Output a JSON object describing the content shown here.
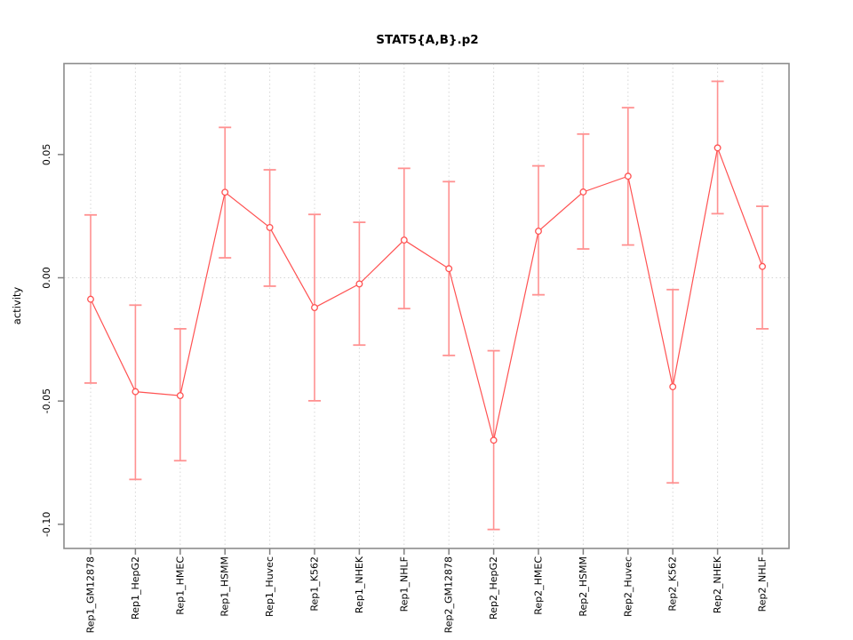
{
  "chart_data": {
    "type": "line",
    "title": "STAT5{A,B}.p2",
    "ylabel": "activity",
    "xlabel": "",
    "legend": "none",
    "point_marker": "open-circle",
    "error_bars": true,
    "categories": [
      "Rep1_GM12878",
      "Rep1_HepG2",
      "Rep1_HMEC",
      "Rep1_HSMM",
      "Rep1_Huvec",
      "Rep1_K562",
      "Rep1_NHEK",
      "Rep1_NHLF",
      "Rep2_GM12878",
      "Rep2_HepG2",
      "Rep2_HMEC",
      "Rep2_HSMM",
      "Rep2_Huvec",
      "Rep2_K562",
      "Rep2_NHEK",
      "Rep2_NHLF"
    ],
    "series": [
      {
        "name": "activity",
        "values": [
          -0.0087,
          -0.0462,
          -0.0478,
          0.0347,
          0.0204,
          -0.0121,
          -0.0025,
          0.0153,
          0.0037,
          -0.0659,
          0.0189,
          0.0348,
          0.0412,
          -0.0442,
          0.0527,
          0.0046
        ],
        "ci_lower": [
          -0.0427,
          -0.0818,
          -0.0742,
          0.0081,
          -0.0034,
          -0.0499,
          -0.0273,
          -0.0125,
          -0.0315,
          -0.1021,
          -0.0069,
          0.0117,
          0.0133,
          -0.0832,
          0.026,
          -0.0207
        ],
        "ci_upper": [
          0.0255,
          -0.0111,
          -0.0207,
          0.061,
          0.0438,
          0.0257,
          0.0225,
          0.0444,
          0.039,
          -0.0296,
          0.0454,
          0.0583,
          0.069,
          -0.0048,
          0.0797,
          0.029
        ]
      }
    ],
    "yticks": [
      {
        "value": 0.05,
        "label": "0.05"
      },
      {
        "value": 0.0,
        "label": "0.00"
      },
      {
        "value": -0.05,
        "label": "-0.05"
      },
      {
        "value": -0.1,
        "label": "-0.10"
      }
    ],
    "ylim": [
      -0.1098,
      0.0869
    ],
    "grid": {
      "vertical_per_category": true,
      "horizontal_at_zero": true,
      "style": "dotted"
    },
    "colors": {
      "series": "#ff5252",
      "error_bar": "#ff9191",
      "box": "#8c8c8c",
      "tick": "#808080",
      "gridline": "#d6d6d6",
      "text": "#000000",
      "background": "#ffffff"
    }
  }
}
